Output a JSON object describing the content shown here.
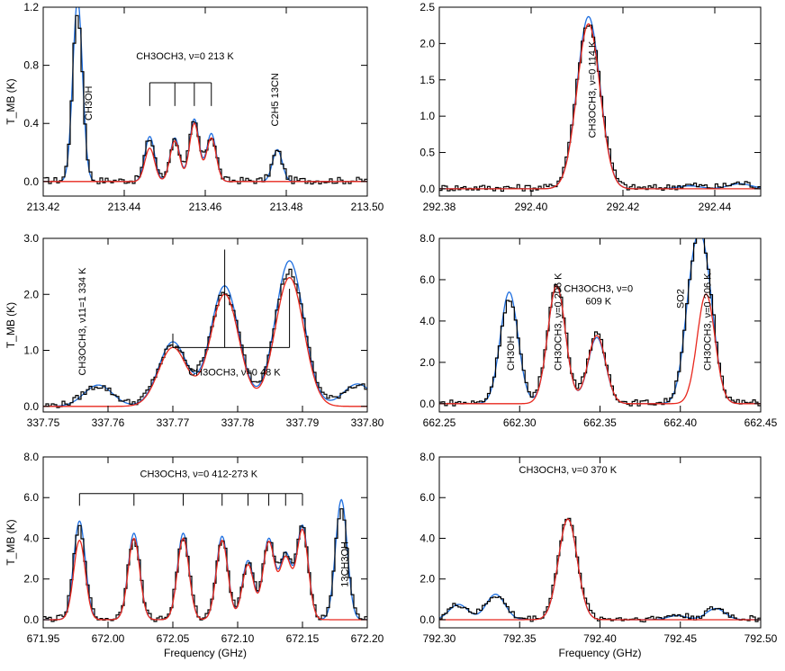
{
  "colors": {
    "observed": "#000000",
    "model_blue": "#1f6fe0",
    "model_red": "#e8281e"
  },
  "chart_data": [
    {
      "type": "line",
      "ylabel": "T_MB (K)",
      "xlabel": "",
      "xlim": [
        213.42,
        213.5
      ],
      "ylim": [
        -0.1,
        1.2
      ],
      "xticks": [
        "213.42",
        "213.44",
        "213.46",
        "213.48",
        "213.50"
      ],
      "yticks": [
        "0.0",
        "0.4",
        "0.8",
        "1.2"
      ],
      "lines": [
        {
          "center": 213.4285,
          "amp_blue": 1.25,
          "amp_red": 0.0
        },
        {
          "center": 213.4463,
          "amp_blue": 0.31,
          "amp_red": 0.23
        },
        {
          "center": 213.4525,
          "amp_blue": 0.3,
          "amp_red": 0.28
        },
        {
          "center": 213.4573,
          "amp_blue": 0.43,
          "amp_red": 0.4
        },
        {
          "center": 213.4615,
          "amp_blue": 0.33,
          "amp_red": 0.3
        },
        {
          "center": 213.4778,
          "amp_blue": 0.22,
          "amp_red": 0.0
        }
      ],
      "sigma": 0.0012,
      "annotations": [
        {
          "text": "CH3OCH3, ν=0 213 K",
          "x": 213.455,
          "y": 0.84,
          "rotate": false
        },
        {
          "text": "CH3OH",
          "x": 213.432,
          "y": 0.42,
          "rotate": true
        },
        {
          "text": "C2H5 13CN",
          "x": 213.478,
          "y": 0.38,
          "rotate": true
        }
      ],
      "brackets": [
        {
          "x1": 213.4463,
          "x2": 213.4615,
          "y": 0.68,
          "drops": [
            213.4463,
            213.4525,
            213.4573,
            213.4615
          ],
          "drop_to": 0.52,
          "up": false
        }
      ]
    },
    {
      "type": "line",
      "ylabel": "",
      "xlabel": "",
      "xlim": [
        292.38,
        292.45
      ],
      "ylim": [
        -0.1,
        2.5
      ],
      "xticks": [
        "292.38",
        "292.40",
        "292.42",
        "292.44"
      ],
      "yticks": [
        "0.0",
        "0.5",
        "1.0",
        "1.5",
        "2.0",
        "2.5"
      ],
      "lines": [
        {
          "center": 292.4125,
          "amp_blue": 2.37,
          "amp_red": 2.27
        },
        {
          "center": 292.4345,
          "amp_blue": 0.04,
          "amp_red": 0.0
        },
        {
          "center": 292.4455,
          "amp_blue": 0.07,
          "amp_red": 0.0
        }
      ],
      "sigma": 0.0025,
      "annotations": [
        {
          "text": "CH3OCH3, ν=0 114 K",
          "x": 292.414,
          "y": 0.7,
          "rotate": true
        }
      ],
      "brackets": []
    },
    {
      "type": "line",
      "ylabel": "T_MB (K)",
      "xlabel": "",
      "xlim": [
        337.75,
        337.8
      ],
      "ylim": [
        -0.1,
        3.0
      ],
      "xticks": [
        "337.75",
        "337.76",
        "337.77",
        "337.78",
        "337.79",
        "337.80"
      ],
      "yticks": [
        "0.0",
        "1.0",
        "2.0",
        "3.0"
      ],
      "lines": [
        {
          "center": 337.7585,
          "amp_blue": 0.38,
          "amp_red": 0.0
        },
        {
          "center": 337.77,
          "amp_blue": 1.15,
          "amp_red": 1.05
        },
        {
          "center": 337.778,
          "amp_blue": 2.15,
          "amp_red": 2.0
        },
        {
          "center": 337.788,
          "amp_blue": 2.6,
          "amp_red": 2.3
        },
        {
          "center": 337.7985,
          "amp_blue": 0.4,
          "amp_red": 0.0
        }
      ],
      "sigma": 0.0022,
      "annotations": [
        {
          "text": "CH3OCH3, ν11=1 334 K",
          "x": 337.7565,
          "y": 0.55,
          "rotate": true
        },
        {
          "text": "CH3OCH3, ν=0 48 K",
          "x": 337.7795,
          "y": 0.55,
          "rotate": false
        }
      ],
      "brackets": [
        {
          "x1": 337.77,
          "x2": 337.788,
          "y": 1.05,
          "drops": [
            337.77,
            337.778,
            337.788
          ],
          "drop_to": 3.0,
          "up": true,
          "ups": [
            1.3,
            2.8,
            2.1
          ]
        }
      ]
    },
    {
      "type": "line",
      "ylabel": "",
      "xlabel": "",
      "xlim": [
        662.25,
        662.45
      ],
      "ylim": [
        -0.4,
        8.0
      ],
      "xticks": [
        "662.25",
        "662.30",
        "662.35",
        "662.40",
        "662.45"
      ],
      "yticks": [
        "0.0",
        "2.0",
        "4.0",
        "6.0",
        "8.0"
      ],
      "lines": [
        {
          "center": 662.2935,
          "amp_blue": 5.4,
          "amp_red": 0.0
        },
        {
          "center": 662.323,
          "amp_blue": 5.7,
          "amp_red": 5.7
        },
        {
          "center": 662.348,
          "amp_blue": 3.2,
          "amp_red": 3.3
        },
        {
          "center": 662.408,
          "amp_blue": 5.5,
          "amp_red": 0.0
        },
        {
          "center": 662.416,
          "amp_blue": 5.3,
          "amp_red": 5.3
        }
      ],
      "sigma": 0.0055,
      "annotations": [
        {
          "text": "CH3OH",
          "x": 662.2965,
          "y": 1.6,
          "rotate": true
        },
        {
          "text": "CH3OCH3, ν=0 206 K",
          "x": 662.326,
          "y": 1.6,
          "rotate": true
        },
        {
          "text": "CH3OCH3, ν=0",
          "x": 662.349,
          "y": 5.4,
          "rotate": false
        },
        {
          "text": "609 K",
          "x": 662.349,
          "y": 4.8,
          "rotate": false
        },
        {
          "text": "SO2",
          "x": 662.402,
          "y": 4.6,
          "rotate": true
        },
        {
          "text": "CH3OCH3, ν=0 206 K",
          "x": 662.419,
          "y": 1.6,
          "rotate": true
        }
      ],
      "brackets": []
    },
    {
      "type": "line",
      "ylabel": "T_MB (K)",
      "xlabel": "Frequency (GHz)",
      "xlim": [
        671.95,
        672.2
      ],
      "ylim": [
        -0.4,
        8.0
      ],
      "xticks": [
        "671.95",
        "672.00",
        "672.05",
        "672.10",
        "672.15",
        "672.20"
      ],
      "yticks": [
        "0.0",
        "2.0",
        "4.0",
        "6.0",
        "8.0"
      ],
      "lines": [
        {
          "center": 671.978,
          "amp_blue": 4.85,
          "amp_red": 3.9
        },
        {
          "center": 672.02,
          "amp_blue": 4.25,
          "amp_red": 4.0
        },
        {
          "center": 672.058,
          "amp_blue": 4.25,
          "amp_red": 4.0
        },
        {
          "center": 672.088,
          "amp_blue": 4.1,
          "amp_red": 3.9
        },
        {
          "center": 672.108,
          "amp_blue": 2.9,
          "amp_red": 2.7
        },
        {
          "center": 672.124,
          "amp_blue": 3.95,
          "amp_red": 3.8
        },
        {
          "center": 672.137,
          "amp_blue": 3.2,
          "amp_red": 3.0
        },
        {
          "center": 672.15,
          "amp_blue": 4.6,
          "amp_red": 4.4
        },
        {
          "center": 672.18,
          "amp_blue": 5.9,
          "amp_red": 0.0
        }
      ],
      "sigma": 0.0045,
      "annotations": [
        {
          "text": "CH3OCH3, ν=0 412-273 K",
          "x": 672.07,
          "y": 7.0,
          "rotate": false
        },
        {
          "text": "13CH3OH",
          "x": 672.185,
          "y": 1.6,
          "rotate": true
        }
      ],
      "brackets": [
        {
          "x1": 671.978,
          "x2": 672.15,
          "y": 6.2,
          "drops": [
            671.978,
            672.02,
            672.058,
            672.088,
            672.108,
            672.124,
            672.137,
            672.15
          ],
          "drop_to": 5.6,
          "up": false
        }
      ]
    },
    {
      "type": "line",
      "ylabel": "",
      "xlabel": "Frequency (GHz)",
      "xlim": [
        792.3,
        792.5
      ],
      "ylim": [
        -0.4,
        8.0
      ],
      "xticks": [
        "792.30",
        "792.35",
        "792.40",
        "792.45",
        "792.50"
      ],
      "yticks": [
        "0.0",
        "2.0",
        "4.0",
        "6.0",
        "8.0"
      ],
      "lines": [
        {
          "center": 792.312,
          "amp_blue": 0.75,
          "amp_red": 0.0
        },
        {
          "center": 792.335,
          "amp_blue": 1.25,
          "amp_red": 0.0
        },
        {
          "center": 792.38,
          "amp_blue": 4.95,
          "amp_red": 4.95
        },
        {
          "center": 792.448,
          "amp_blue": 0.2,
          "amp_red": 0.0
        },
        {
          "center": 792.472,
          "amp_blue": 0.55,
          "amp_red": 0.0
        }
      ],
      "sigma": 0.0058,
      "annotations": [
        {
          "text": "CH3OCH3, ν=0 370 K",
          "x": 792.38,
          "y": 7.2,
          "rotate": false
        }
      ],
      "brackets": []
    }
  ]
}
